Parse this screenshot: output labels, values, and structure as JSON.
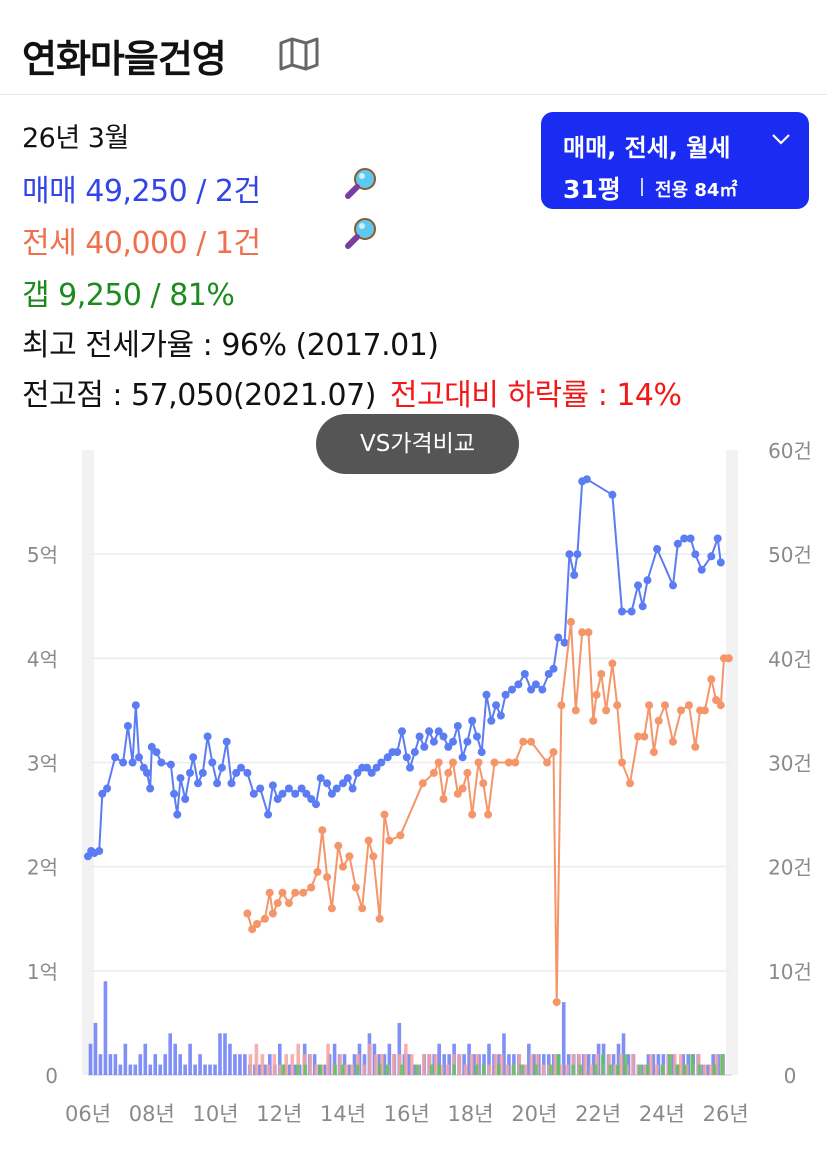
{
  "header": {
    "title": "연화마을건영",
    "map_icon": "map-icon"
  },
  "info": {
    "date": "26년 3월",
    "sale": "매매 49,250 / 2건",
    "jeonse": "전세 40,000 / 1건",
    "gap": "갭    9,250 / 81%",
    "max_ratio": "최고 전세가율 : 96% (2017.01)",
    "peak": "전고점 : 57,050(2021.07)",
    "peak_drop": "전고대비 하락률 : 14%"
  },
  "selector": {
    "types": "매매, 전세, 월세",
    "size": "31평",
    "area": "전용 84㎡"
  },
  "vs_button": "VS가격비교",
  "colors": {
    "sale": "#5b7cf2",
    "jeonse": "#f5956a",
    "gap": "#5cc45c",
    "accent": "#1a2bf2",
    "drop": "#f21818"
  },
  "chart_data": {
    "type": "line",
    "x_unit": "year",
    "y_left": {
      "unit": "억",
      "ylim": [
        0,
        6
      ],
      "tick_labels": [
        "0",
        "1억",
        "2억",
        "3억",
        "4억",
        "5억"
      ],
      "tick_values": [
        0,
        1,
        2,
        3,
        4,
        5
      ]
    },
    "y_right": {
      "unit": "건",
      "ylim": [
        0,
        60
      ],
      "tick_labels": [
        "0",
        "10건",
        "20건",
        "30건",
        "40건",
        "50건",
        "60건"
      ],
      "tick_values": [
        0,
        10,
        20,
        30,
        40,
        50,
        60
      ]
    },
    "x_ticks": [
      {
        "label": "06년",
        "value": 2006
      },
      {
        "label": "08년",
        "value": 2008
      },
      {
        "label": "10년",
        "value": 2010
      },
      {
        "label": "12년",
        "value": 2012
      },
      {
        "label": "14년",
        "value": 2014
      },
      {
        "label": "16년",
        "value": 2016
      },
      {
        "label": "18년",
        "value": 2018
      },
      {
        "label": "20년",
        "value": 2020
      },
      {
        "label": "22년",
        "value": 2022
      },
      {
        "label": "24년",
        "value": 2024
      },
      {
        "label": "26년",
        "value": 2026
      }
    ],
    "xlim": [
      2006,
      2026.2
    ],
    "grid": true,
    "series": [
      {
        "key": "sale",
        "color": "#5b7cf2",
        "points": [
          [
            2006.0,
            2.1
          ],
          [
            2006.1,
            2.15
          ],
          [
            2006.2,
            2.13
          ],
          [
            2006.35,
            2.15
          ],
          [
            2006.45,
            2.7
          ],
          [
            2006.6,
            2.75
          ],
          [
            2006.85,
            3.05
          ],
          [
            2007.1,
            3.0
          ],
          [
            2007.25,
            3.35
          ],
          [
            2007.4,
            3.0
          ],
          [
            2007.5,
            3.55
          ],
          [
            2007.6,
            3.05
          ],
          [
            2007.75,
            2.95
          ],
          [
            2007.85,
            2.9
          ],
          [
            2007.95,
            2.75
          ],
          [
            2008.0,
            3.15
          ],
          [
            2008.15,
            3.1
          ],
          [
            2008.3,
            3.0
          ],
          [
            2008.6,
            2.98
          ],
          [
            2008.7,
            2.7
          ],
          [
            2008.8,
            2.5
          ],
          [
            2008.9,
            2.85
          ],
          [
            2009.05,
            2.65
          ],
          [
            2009.2,
            2.9
          ],
          [
            2009.3,
            3.05
          ],
          [
            2009.45,
            2.8
          ],
          [
            2009.6,
            2.9
          ],
          [
            2009.75,
            3.25
          ],
          [
            2009.9,
            3.0
          ],
          [
            2010.05,
            2.8
          ],
          [
            2010.2,
            2.95
          ],
          [
            2010.35,
            3.2
          ],
          [
            2010.5,
            2.8
          ],
          [
            2010.65,
            2.9
          ],
          [
            2010.8,
            2.95
          ],
          [
            2011.0,
            2.9
          ],
          [
            2011.2,
            2.7
          ],
          [
            2011.4,
            2.75
          ],
          [
            2011.65,
            2.5
          ],
          [
            2011.8,
            2.78
          ],
          [
            2011.95,
            2.65
          ],
          [
            2012.1,
            2.7
          ],
          [
            2012.3,
            2.75
          ],
          [
            2012.5,
            2.7
          ],
          [
            2012.7,
            2.75
          ],
          [
            2012.85,
            2.7
          ],
          [
            2013.0,
            2.65
          ],
          [
            2013.15,
            2.6
          ],
          [
            2013.3,
            2.85
          ],
          [
            2013.5,
            2.8
          ],
          [
            2013.65,
            2.7
          ],
          [
            2013.8,
            2.75
          ],
          [
            2014.0,
            2.8
          ],
          [
            2014.15,
            2.85
          ],
          [
            2014.3,
            2.75
          ],
          [
            2014.45,
            2.9
          ],
          [
            2014.6,
            2.95
          ],
          [
            2014.75,
            2.95
          ],
          [
            2014.9,
            2.9
          ],
          [
            2015.05,
            2.95
          ],
          [
            2015.2,
            3.0
          ],
          [
            2015.4,
            3.05
          ],
          [
            2015.55,
            3.1
          ],
          [
            2015.7,
            3.1
          ],
          [
            2015.85,
            3.3
          ],
          [
            2016.0,
            3.05
          ],
          [
            2016.1,
            2.95
          ],
          [
            2016.25,
            3.1
          ],
          [
            2016.4,
            3.25
          ],
          [
            2016.55,
            3.15
          ],
          [
            2016.7,
            3.3
          ],
          [
            2016.85,
            3.2
          ],
          [
            2017.0,
            3.3
          ],
          [
            2017.15,
            3.25
          ],
          [
            2017.3,
            3.15
          ],
          [
            2017.45,
            3.2
          ],
          [
            2017.6,
            3.35
          ],
          [
            2017.75,
            3.05
          ],
          [
            2017.9,
            3.2
          ],
          [
            2018.05,
            3.4
          ],
          [
            2018.2,
            3.25
          ],
          [
            2018.35,
            3.1
          ],
          [
            2018.5,
            3.65
          ],
          [
            2018.65,
            3.4
          ],
          [
            2018.8,
            3.55
          ],
          [
            2018.95,
            3.45
          ],
          [
            2019.1,
            3.65
          ],
          [
            2019.3,
            3.7
          ],
          [
            2019.5,
            3.75
          ],
          [
            2019.7,
            3.85
          ],
          [
            2019.9,
            3.7
          ],
          [
            2020.05,
            3.75
          ],
          [
            2020.25,
            3.7
          ],
          [
            2020.45,
            3.85
          ],
          [
            2020.6,
            3.9
          ],
          [
            2020.75,
            4.2
          ],
          [
            2020.95,
            4.15
          ],
          [
            2021.1,
            5.0
          ],
          [
            2021.25,
            4.8
          ],
          [
            2021.35,
            5.0
          ],
          [
            2021.5,
            5.7
          ],
          [
            2021.65,
            5.72
          ],
          [
            2022.45,
            5.57
          ],
          [
            2022.75,
            4.45
          ],
          [
            2023.05,
            4.45
          ],
          [
            2023.25,
            4.7
          ],
          [
            2023.4,
            4.5
          ],
          [
            2023.55,
            4.75
          ],
          [
            2023.85,
            5.05
          ],
          [
            2024.35,
            4.7
          ],
          [
            2024.5,
            5.1
          ],
          [
            2024.7,
            5.15
          ],
          [
            2024.9,
            5.15
          ],
          [
            2025.05,
            5.0
          ],
          [
            2025.25,
            4.85
          ],
          [
            2025.55,
            4.98
          ],
          [
            2025.75,
            5.15
          ],
          [
            2025.85,
            4.92
          ]
        ]
      },
      {
        "key": "jeonse",
        "color": "#f5956a",
        "points": [
          [
            2011.0,
            1.55
          ],
          [
            2011.15,
            1.4
          ],
          [
            2011.3,
            1.45
          ],
          [
            2011.55,
            1.5
          ],
          [
            2011.7,
            1.75
          ],
          [
            2011.8,
            1.55
          ],
          [
            2011.95,
            1.65
          ],
          [
            2012.1,
            1.75
          ],
          [
            2012.3,
            1.65
          ],
          [
            2012.5,
            1.75
          ],
          [
            2012.75,
            1.75
          ],
          [
            2013.0,
            1.8
          ],
          [
            2013.2,
            1.95
          ],
          [
            2013.35,
            2.35
          ],
          [
            2013.5,
            1.9
          ],
          [
            2013.65,
            1.6
          ],
          [
            2013.85,
            2.2
          ],
          [
            2014.0,
            2.0
          ],
          [
            2014.2,
            2.1
          ],
          [
            2014.4,
            1.8
          ],
          [
            2014.6,
            1.6
          ],
          [
            2014.8,
            2.25
          ],
          [
            2014.95,
            2.1
          ],
          [
            2015.15,
            1.5
          ],
          [
            2015.3,
            2.5
          ],
          [
            2015.45,
            2.25
          ],
          [
            2015.8,
            2.3
          ],
          [
            2016.5,
            2.8
          ],
          [
            2016.85,
            2.9
          ],
          [
            2017.0,
            3.0
          ],
          [
            2017.15,
            2.65
          ],
          [
            2017.3,
            2.9
          ],
          [
            2017.45,
            3.0
          ],
          [
            2017.6,
            2.7
          ],
          [
            2017.75,
            2.75
          ],
          [
            2017.9,
            2.9
          ],
          [
            2018.05,
            2.5
          ],
          [
            2018.25,
            3.0
          ],
          [
            2018.4,
            2.8
          ],
          [
            2018.55,
            2.5
          ],
          [
            2018.75,
            3.0
          ],
          [
            2019.2,
            3.0
          ],
          [
            2019.4,
            3.0
          ],
          [
            2019.65,
            3.2
          ],
          [
            2019.9,
            3.2
          ],
          [
            2020.4,
            3.0
          ],
          [
            2020.6,
            3.1
          ],
          [
            2020.7,
            0.7
          ],
          [
            2020.85,
            3.55
          ],
          [
            2021.15,
            4.35
          ],
          [
            2021.3,
            3.5
          ],
          [
            2021.5,
            4.25
          ],
          [
            2021.7,
            4.25
          ],
          [
            2021.85,
            3.4
          ],
          [
            2021.95,
            3.65
          ],
          [
            2022.1,
            3.85
          ],
          [
            2022.25,
            3.5
          ],
          [
            2022.45,
            3.95
          ],
          [
            2022.6,
            3.55
          ],
          [
            2022.75,
            3.0
          ],
          [
            2023.0,
            2.8
          ],
          [
            2023.25,
            3.25
          ],
          [
            2023.45,
            3.25
          ],
          [
            2023.6,
            3.55
          ],
          [
            2023.75,
            3.1
          ],
          [
            2023.9,
            3.4
          ],
          [
            2024.1,
            3.55
          ],
          [
            2024.35,
            3.2
          ],
          [
            2024.6,
            3.5
          ],
          [
            2024.85,
            3.55
          ],
          [
            2025.05,
            3.15
          ],
          [
            2025.2,
            3.5
          ],
          [
            2025.35,
            3.5
          ],
          [
            2025.55,
            3.8
          ],
          [
            2025.7,
            3.6
          ],
          [
            2025.85,
            3.55
          ],
          [
            2025.95,
            4.0
          ],
          [
            2026.1,
            4.0
          ]
        ]
      }
    ],
    "volume_bars": [
      {
        "key": "sale",
        "color": "#6b7df5",
        "range": [
          2006.0,
          2026.0
        ],
        "levels": [
          3,
          5,
          2,
          9,
          2,
          2,
          1,
          3,
          1,
          1,
          2,
          3,
          1,
          2,
          1,
          2,
          4,
          3,
          2,
          1,
          3,
          1,
          2,
          1,
          1,
          1,
          4,
          4,
          3,
          2,
          2,
          2,
          1,
          1,
          1,
          1,
          2,
          1,
          3,
          1,
          1,
          1,
          1,
          3,
          2,
          2,
          1,
          1,
          2,
          3,
          2,
          2,
          1,
          2,
          3,
          2,
          4,
          3,
          2,
          2,
          3,
          2,
          5,
          2,
          2,
          1,
          1,
          2,
          2,
          2,
          3,
          2,
          2,
          3,
          2,
          2,
          3,
          2,
          2,
          2,
          3,
          2,
          2,
          4,
          2,
          2,
          2,
          1,
          3,
          2,
          2,
          2,
          2,
          2,
          2,
          7,
          2,
          2,
          2,
          2,
          2,
          2,
          3,
          3,
          2,
          2,
          3,
          4,
          2,
          2,
          1,
          1,
          2,
          2,
          2,
          2,
          2,
          2,
          1,
          2,
          2,
          2,
          2,
          1,
          1,
          2,
          2,
          2
        ]
      },
      {
        "key": "jeonse",
        "color": "#f5a3a0",
        "range": [
          2011.0,
          2026.0
        ],
        "levels": [
          2,
          3,
          2,
          1,
          2,
          1,
          2,
          2,
          3,
          2,
          2,
          1,
          1,
          3,
          1,
          2,
          1,
          1,
          2,
          1,
          3,
          2,
          2,
          1,
          2,
          2,
          3,
          2,
          1,
          2,
          2,
          2,
          1,
          1,
          2,
          2,
          1,
          2,
          2,
          1,
          1,
          2,
          2,
          1,
          1,
          2,
          1,
          2,
          2,
          1,
          1,
          2,
          1,
          1,
          2,
          2,
          2,
          1,
          2,
          1,
          2,
          1,
          2,
          1,
          2,
          1,
          1,
          2,
          1,
          1,
          2,
          2,
          2,
          1,
          1,
          2,
          1,
          1,
          2,
          2
        ]
      },
      {
        "key": "gap",
        "color": "#5cc45c",
        "range": [
          2012.0,
          2026.0
        ],
        "levels": [
          1,
          0,
          1,
          1,
          0,
          1,
          0,
          1,
          1,
          0,
          1,
          0,
          0,
          1,
          1,
          0,
          1,
          0,
          1,
          0,
          1,
          1,
          0,
          1,
          0,
          0,
          1,
          1,
          0,
          1,
          0,
          1,
          1,
          0,
          1,
          0,
          1,
          2,
          0,
          1,
          1,
          0,
          1,
          2,
          1,
          1,
          2,
          0,
          1,
          1,
          0,
          1,
          2,
          1,
          1,
          2,
          1,
          0,
          1,
          2
        ]
      }
    ]
  }
}
